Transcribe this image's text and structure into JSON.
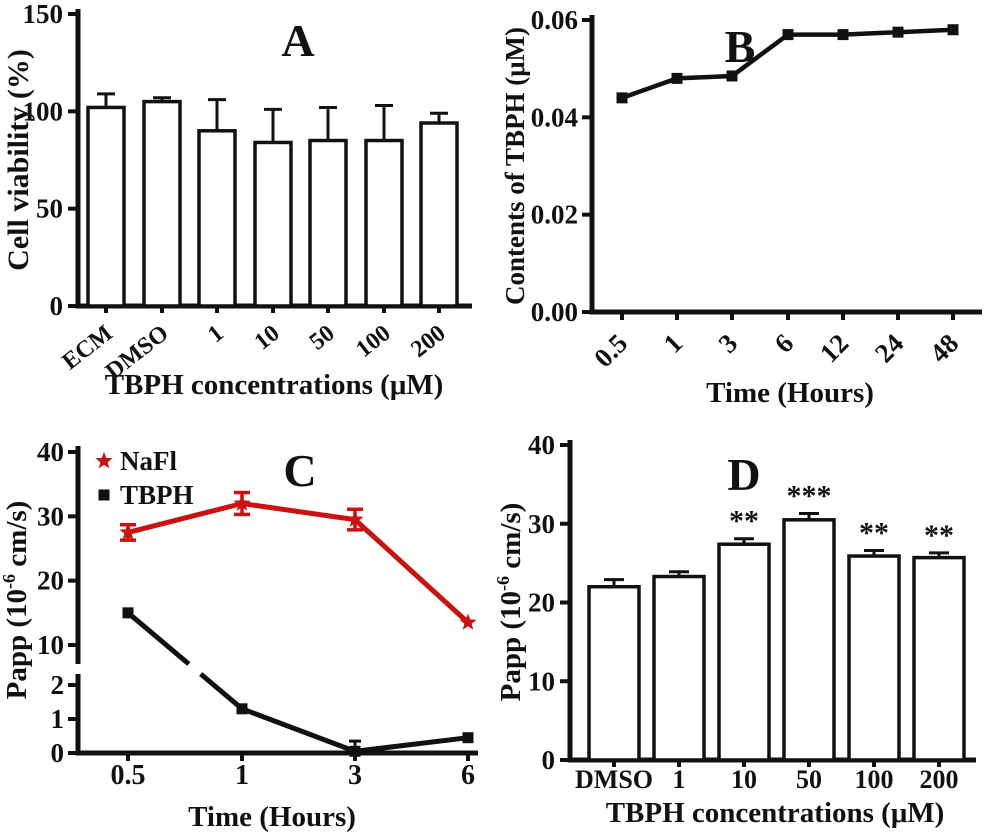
{
  "figure": {
    "description": "Four-panel scientific figure (A-D) on TBPH cytotoxicity and permeability",
    "colors": {
      "ink": "#111111",
      "red": "#cc1111",
      "background": "#ffffff",
      "bar_fill": "#ffffff"
    }
  },
  "chart_data": [
    {
      "panel": "A",
      "type": "bar",
      "ylabel": "Cell viability (%)",
      "xlabel": "TBPH concentrations (μM)",
      "categories": [
        "ECM",
        "DMSO",
        "1",
        "10",
        "50",
        "100",
        "200"
      ],
      "values": [
        102,
        105,
        90,
        84,
        85,
        85,
        94
      ],
      "errors": [
        7,
        2,
        16,
        17,
        17,
        18,
        5
      ],
      "ylim": [
        0,
        150
      ],
      "yticks": [
        "0",
        "50",
        "100",
        "150"
      ],
      "x_tick_rotation": -38,
      "grid": false
    },
    {
      "panel": "B",
      "type": "line",
      "ylabel": "Contents of TBPH (μM)",
      "xlabel": "Time (Hours)",
      "categories": [
        "0.5",
        "1",
        "3",
        "6",
        "12",
        "24",
        "48"
      ],
      "values": [
        0.044,
        0.048,
        0.0485,
        0.057,
        0.057,
        0.0575,
        0.058
      ],
      "ylim": [
        0,
        0.06
      ],
      "yticks": [
        "0.00",
        "0.02",
        "0.04",
        "0.06"
      ],
      "marker": "square",
      "x_tick_rotation": -45,
      "grid": false
    },
    {
      "panel": "C",
      "type": "line",
      "ylabel": {
        "pre": "Papp (10",
        "sup": "-6",
        "post": " cm/s)"
      },
      "xlabel": "Time  (Hours)",
      "categories": [
        "0.5",
        "1",
        "3",
        "6"
      ],
      "axis_break": {
        "lower_ticks": [
          "0",
          "1",
          "2"
        ],
        "upper_ticks": [
          "10",
          "20",
          "30",
          "40"
        ],
        "break_between": [
          2,
          10
        ]
      },
      "series": [
        {
          "name": "NaFl",
          "color": "#cc1111",
          "marker": "star",
          "values": [
            27.5,
            32,
            29.5,
            13.5
          ],
          "errors": [
            1.2,
            1.7,
            1.6,
            0
          ]
        },
        {
          "name": "TBPH",
          "color": "#111111",
          "marker": "square",
          "values": [
            15,
            1.3,
            0.05,
            0.45
          ],
          "errors": [
            0,
            0,
            0.3,
            0
          ]
        }
      ],
      "legend_position": "top-left",
      "grid": false
    },
    {
      "panel": "D",
      "type": "bar",
      "ylabel": {
        "pre": "Papp (10",
        "sup": "-6",
        "post": " cm/s)"
      },
      "xlabel": "TBPH concentrations (μM)",
      "categories": [
        "DMSO",
        "1",
        "10",
        "50",
        "100",
        "200"
      ],
      "values": [
        22,
        23.3,
        27.4,
        30.5,
        25.9,
        25.7
      ],
      "errors": [
        0.9,
        0.6,
        0.7,
        0.8,
        0.7,
        0.6
      ],
      "significance": [
        "",
        "",
        "**",
        "***",
        "**",
        "**"
      ],
      "ylim": [
        0,
        40
      ],
      "yticks": [
        "0",
        "10",
        "20",
        "30",
        "40"
      ],
      "x_tick_rotation": 0,
      "grid": false
    }
  ]
}
